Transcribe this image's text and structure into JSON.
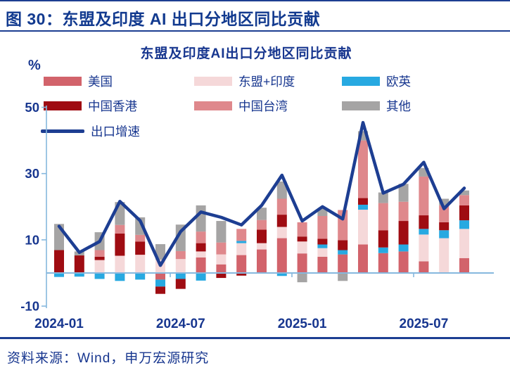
{
  "header": {
    "title": "图 30：东盟及印度 AI 出口分地区同比贡献"
  },
  "footer": {
    "source": "资料来源：Wind，申万宏源研究"
  },
  "chart_data": {
    "type": "bar",
    "subtype": "stacked-bar-with-line",
    "title": "东盟及印度AI出口分地区同比贡献",
    "unit_label": "%",
    "categories": [
      "2024-01",
      "2024-02",
      "2024-03",
      "2024-04",
      "2024-05",
      "2024-06",
      "2024-07",
      "2024-08",
      "2024-09",
      "2024-10",
      "2024-11",
      "2024-12",
      "2025-01",
      "2025-02",
      "2025-03",
      "2025-04",
      "2025-05",
      "2025-06",
      "2025-07",
      "2025-08",
      "2025-09"
    ],
    "x_tick_labels": [
      "2024-01",
      "2024-07",
      "2025-01",
      "2025-07"
    ],
    "yticks": [
      50,
      30,
      10,
      -10
    ],
    "ylim": [
      -10,
      50
    ],
    "grid": false,
    "legend_position": "top-left",
    "series": [
      {
        "name": "美国",
        "color": "#d2636b",
        "values": [
          0,
          0,
          0,
          0,
          0,
          -2.0,
          0,
          4.7,
          2.6,
          5.4,
          7.1,
          10.5,
          5.9,
          4.9,
          5.6,
          8.6,
          6.0,
          6.5,
          3.5,
          0,
          4.5
        ]
      },
      {
        "name": "东盟+印度",
        "color": "#f5d8d9",
        "values": [
          0,
          0,
          3.9,
          5.2,
          5.5,
          4.0,
          4.2,
          1.8,
          3.0,
          3.6,
          1.9,
          3.4,
          3.6,
          2.6,
          0,
          10.5,
          0,
          0,
          8.1,
          10.5,
          8.8
        ]
      },
      {
        "name": "欧英",
        "color": "#27a9e1",
        "values": [
          -1.2,
          -1.1,
          -1.8,
          -2.4,
          -2.0,
          -2.1,
          -1.8,
          -2.3,
          0,
          0.7,
          0,
          -0.9,
          0,
          1.1,
          1.3,
          1.5,
          1.7,
          2.1,
          1.7,
          2.4,
          2.6
        ]
      },
      {
        "name": "中国香港",
        "color": "#9f0c12",
        "values": [
          6.9,
          5.3,
          1.0,
          6.7,
          4.0,
          -2.2,
          -3.0,
          2.5,
          -1.5,
          -0.8,
          4.1,
          3.7,
          1.5,
          1.7,
          3.0,
          2.0,
          5.2,
          7.1,
          4.1,
          2.4,
          4.5
        ]
      },
      {
        "name": "中国台湾",
        "color": "#df888c",
        "values": [
          0,
          0,
          2.0,
          2.6,
          2.0,
          0,
          2.4,
          3.5,
          3.6,
          3.6,
          2.9,
          4.8,
          4.3,
          6.9,
          9.1,
          17.4,
          8.2,
          5.8,
          11.7,
          5.1,
          3.1
        ]
      },
      {
        "name": "其他",
        "color": "#a5a4a4",
        "values": [
          7.9,
          1.2,
          5.4,
          6.9,
          5.3,
          4.7,
          8.0,
          7.9,
          6.5,
          0,
          3.7,
          5.2,
          -2.8,
          2.4,
          -2.4,
          2.8,
          3.2,
          5.4,
          2.6,
          2.0,
          1.4
        ]
      }
    ],
    "line_series": {
      "name": "出口增速",
      "color": "#1d3e92",
      "values": [
        14.1,
        6.2,
        9.5,
        21.6,
        15.8,
        2.3,
        12.5,
        18.4,
        16.8,
        14.5,
        20.4,
        29.5,
        15.7,
        20.0,
        16.3,
        45.4,
        24.1,
        26.8,
        33.4,
        19.4,
        25.6
      ]
    }
  },
  "colors": {
    "navy_text": "#17368f",
    "line_navy": "#1d3e92",
    "axis_blue": "#86b8de"
  }
}
